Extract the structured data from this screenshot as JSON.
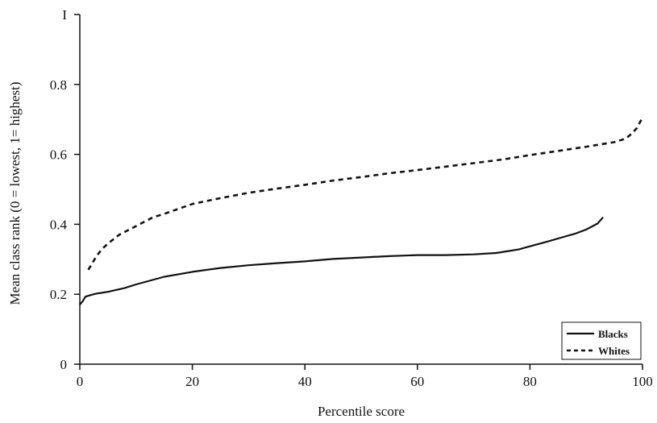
{
  "chart_data": {
    "type": "line",
    "title": "",
    "xlabel": "Percentile score",
    "ylabel": "Mean class rank (0 = lowest, 1= highest)",
    "xlim": [
      0,
      100
    ],
    "ylim": [
      0,
      1
    ],
    "x_ticks": [
      0,
      20,
      40,
      60,
      80,
      100
    ],
    "x_tick_labels": [
      "0",
      "20",
      "40",
      "60",
      "80",
      "100"
    ],
    "y_ticks": [
      0,
      0.2,
      0.4,
      0.6,
      0.8,
      1
    ],
    "y_tick_labels": [
      "0",
      "0.2",
      "0.4",
      "0.6",
      "0.8",
      "I"
    ],
    "grid": false,
    "legend_position": "bottom-right",
    "series": [
      {
        "name": "Blacks",
        "style": "solid",
        "color": "#111111",
        "x": [
          0,
          0.5,
          1,
          2,
          3,
          5,
          8,
          10,
          15,
          20,
          25,
          30,
          35,
          40,
          45,
          50,
          55,
          60,
          65,
          70,
          74,
          78,
          80,
          83,
          86,
          88,
          90,
          92,
          93
        ],
        "y": [
          0.17,
          0.18,
          0.193,
          0.198,
          0.202,
          0.207,
          0.218,
          0.228,
          0.25,
          0.264,
          0.275,
          0.283,
          0.289,
          0.294,
          0.301,
          0.305,
          0.309,
          0.312,
          0.312,
          0.314,
          0.318,
          0.328,
          0.337,
          0.35,
          0.364,
          0.373,
          0.385,
          0.402,
          0.42
        ]
      },
      {
        "name": "Whites",
        "style": "dashed",
        "color": "#111111",
        "x": [
          1.5,
          2,
          3,
          4,
          5,
          7,
          10,
          13,
          15,
          20,
          25,
          30,
          35,
          40,
          45,
          50,
          55,
          60,
          65,
          70,
          75,
          80,
          85,
          90,
          95,
          97,
          98,
          99,
          100
        ],
        "y": [
          0.27,
          0.283,
          0.31,
          0.33,
          0.345,
          0.37,
          0.395,
          0.42,
          0.43,
          0.458,
          0.475,
          0.49,
          0.502,
          0.513,
          0.525,
          0.535,
          0.546,
          0.555,
          0.565,
          0.575,
          0.585,
          0.598,
          0.61,
          0.622,
          0.635,
          0.645,
          0.658,
          0.675,
          0.705
        ]
      }
    ]
  }
}
